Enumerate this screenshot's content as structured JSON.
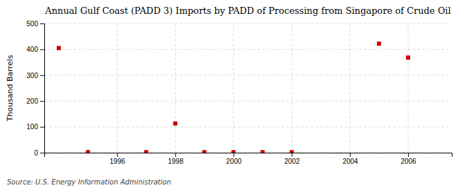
{
  "chart_data": {
    "type": "scatter",
    "title": "Annual Gulf Coast (PADD 3) Imports by PADD of Processing from Singapore of Crude Oil",
    "ylabel": "Thousand Barrels",
    "source": "Source: U.S. Energy Information Administration",
    "x": [
      1994,
      1995,
      1997,
      1998,
      1999,
      2000,
      2001,
      2002,
      2005,
      2006
    ],
    "values": [
      405,
      2,
      2,
      113,
      2,
      2,
      2,
      2,
      422,
      368
    ],
    "color": "#cc0000",
    "marker": "square",
    "xlim": [
      1993.5,
      2007.5
    ],
    "ylim": [
      0,
      500
    ],
    "xticks": [
      1996,
      1998,
      2000,
      2002,
      2004,
      2006
    ],
    "yticks": [
      0,
      100,
      200,
      300,
      400,
      500
    ],
    "grid": true
  }
}
